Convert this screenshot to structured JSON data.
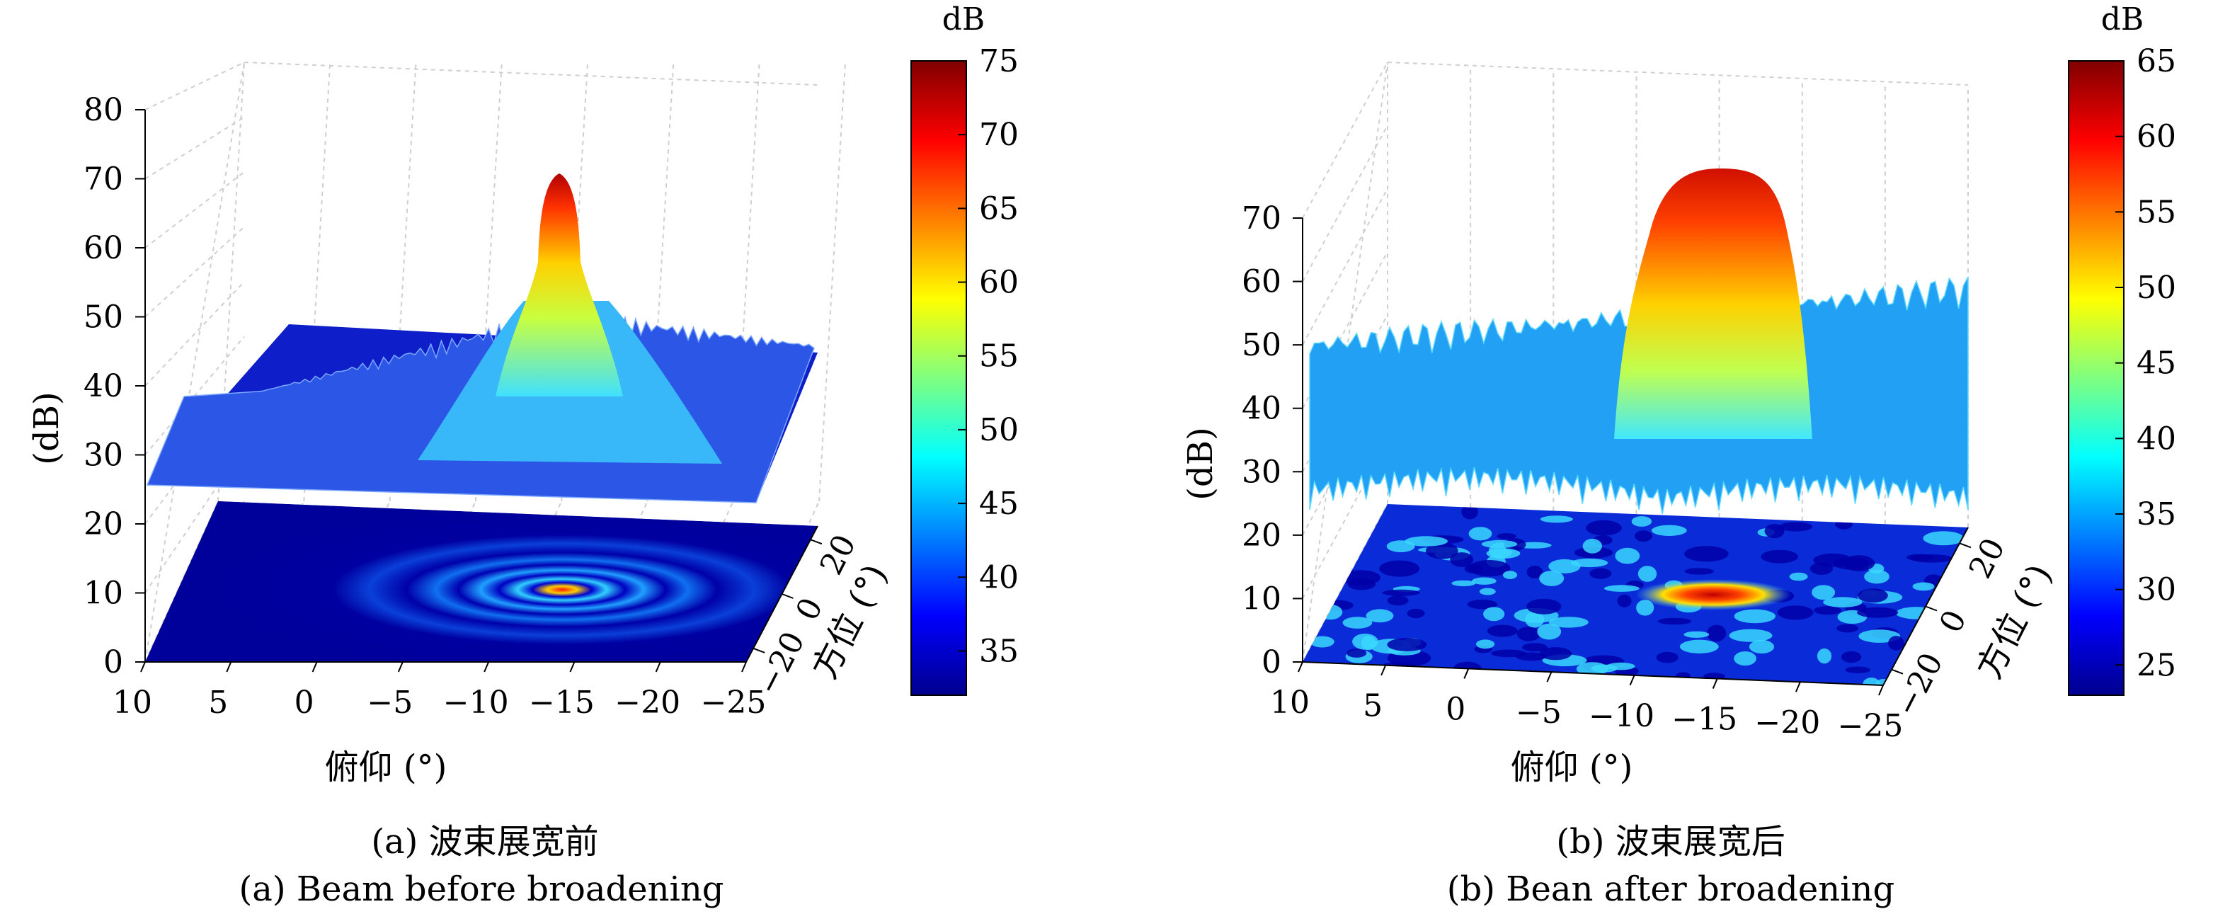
{
  "figure": {
    "captions": [
      {
        "panel": "a",
        "line1": "(a) 波束展宽前",
        "line2": "(a) Beam before broadening"
      },
      {
        "panel": "b",
        "line1": "(b) 波束展宽后",
        "line2": "(b) Bean after broadening"
      }
    ]
  },
  "chart_data": [
    {
      "type": "surface",
      "panel": "a",
      "zlabel": "(dB)",
      "xlabel": "俯仰 (°)",
      "ylabel": "方位 (°)",
      "x_ticks": [
        "10",
        "5",
        "0",
        "−5",
        "−10",
        "−15",
        "−20",
        "−25"
      ],
      "y_ticks": [
        "−20",
        "0",
        "20"
      ],
      "z_ticks": [
        "0",
        "10",
        "20",
        "30",
        "40",
        "50",
        "60",
        "70",
        "80"
      ],
      "xlim": [
        10,
        -25
      ],
      "ylim": [
        -25,
        25
      ],
      "zlim": [
        0,
        80
      ],
      "colorbar": {
        "title": "dB",
        "ticks": [
          "35",
          "40",
          "45",
          "50",
          "55",
          "60",
          "65",
          "70",
          "75"
        ],
        "range": [
          32,
          75
        ]
      },
      "colormap": [
        "#00008f",
        "#0000ff",
        "#0080ff",
        "#00ffff",
        "#80ff80",
        "#ffff00",
        "#ff8000",
        "#ff0000",
        "#800000"
      ],
      "surface_base_db": 32,
      "peak": {
        "x": -15,
        "y": 0,
        "z": 75
      },
      "projection": "contour map at z = 0",
      "grid": true
    },
    {
      "type": "surface",
      "panel": "b",
      "zlabel": "(dB)",
      "xlabel": "俯仰 (°)",
      "ylabel": "方位 (°)",
      "x_ticks": [
        "10",
        "5",
        "0",
        "−5",
        "−10",
        "−15",
        "−20",
        "−25"
      ],
      "y_ticks": [
        "−20",
        "0",
        "20"
      ],
      "z_ticks": [
        "0",
        "10",
        "20",
        "30",
        "40",
        "50",
        "60",
        "70"
      ],
      "xlim": [
        10,
        -25
      ],
      "ylim": [
        -25,
        25
      ],
      "zlim": [
        0,
        70
      ],
      "colorbar": {
        "title": "dB",
        "ticks": [
          "25",
          "30",
          "35",
          "40",
          "45",
          "50",
          "55",
          "60",
          "65"
        ],
        "range": [
          23,
          65
        ]
      },
      "colormap": [
        "#00008f",
        "#0000ff",
        "#0080ff",
        "#00ffff",
        "#80ff80",
        "#ffff00",
        "#ff8000",
        "#ff0000",
        "#800000"
      ],
      "surface_base_db": 23,
      "peak": {
        "x": -15,
        "y": 0,
        "z": 65
      },
      "projection": "contour map at z = 0",
      "grid": true
    }
  ]
}
